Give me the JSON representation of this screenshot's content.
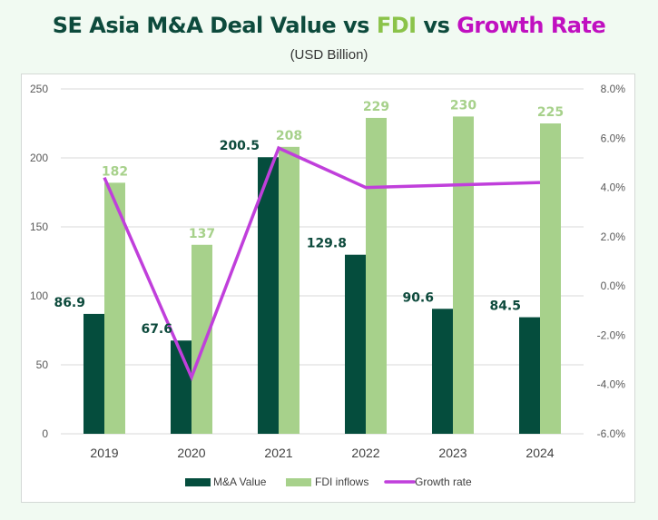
{
  "title": {
    "part1": "SE Asia M&A Deal Value vs ",
    "part2": "FDI",
    "part3": " vs ",
    "part4": "Growth Rate"
  },
  "subtitle": "(USD Billion)",
  "colors": {
    "ma": "#054d3d",
    "fdi": "#a7d18b",
    "growth": "#c03fdb",
    "title_dark": "#0d4a3c",
    "title_fdi": "#8bc34a",
    "title_growth": "#c010c0"
  },
  "chart_data": {
    "type": "bar",
    "title": "SE Asia M&A Deal Value vs FDI vs Growth Rate",
    "subtitle": "(USD Billion)",
    "categories": [
      "2019",
      "2020",
      "2021",
      "2022",
      "2023",
      "2024"
    ],
    "series": [
      {
        "name": "M&A Value",
        "type": "bar",
        "axis": "left",
        "values": [
          86.9,
          67.6,
          200.5,
          129.8,
          90.6,
          84.5
        ],
        "labels": [
          "86.9",
          "67.6",
          "200.5",
          "129.8",
          "90.6",
          "84.5"
        ]
      },
      {
        "name": "FDI inflows",
        "type": "bar",
        "axis": "left",
        "values": [
          182,
          137,
          208,
          229,
          230,
          225
        ],
        "labels": [
          "182",
          "137",
          "208",
          "229",
          "230",
          "225"
        ]
      },
      {
        "name": "Growth rate",
        "type": "line",
        "axis": "right",
        "values": [
          4.4,
          -3.7,
          5.6,
          4.0,
          4.1,
          4.2
        ]
      }
    ],
    "ylim": [
      0,
      250
    ],
    "yticks": [
      "0",
      "50",
      "100",
      "150",
      "200",
      "250"
    ],
    "y2lim": [
      -6,
      8
    ],
    "y2ticks": [
      "-6.0%",
      "-4.0%",
      "-2.0%",
      "0.0%",
      "2.0%",
      "4.0%",
      "6.0%",
      "8.0%"
    ],
    "xlabel": "",
    "ylabel": "",
    "y2label": "",
    "grid": true,
    "legend": "bottom"
  }
}
